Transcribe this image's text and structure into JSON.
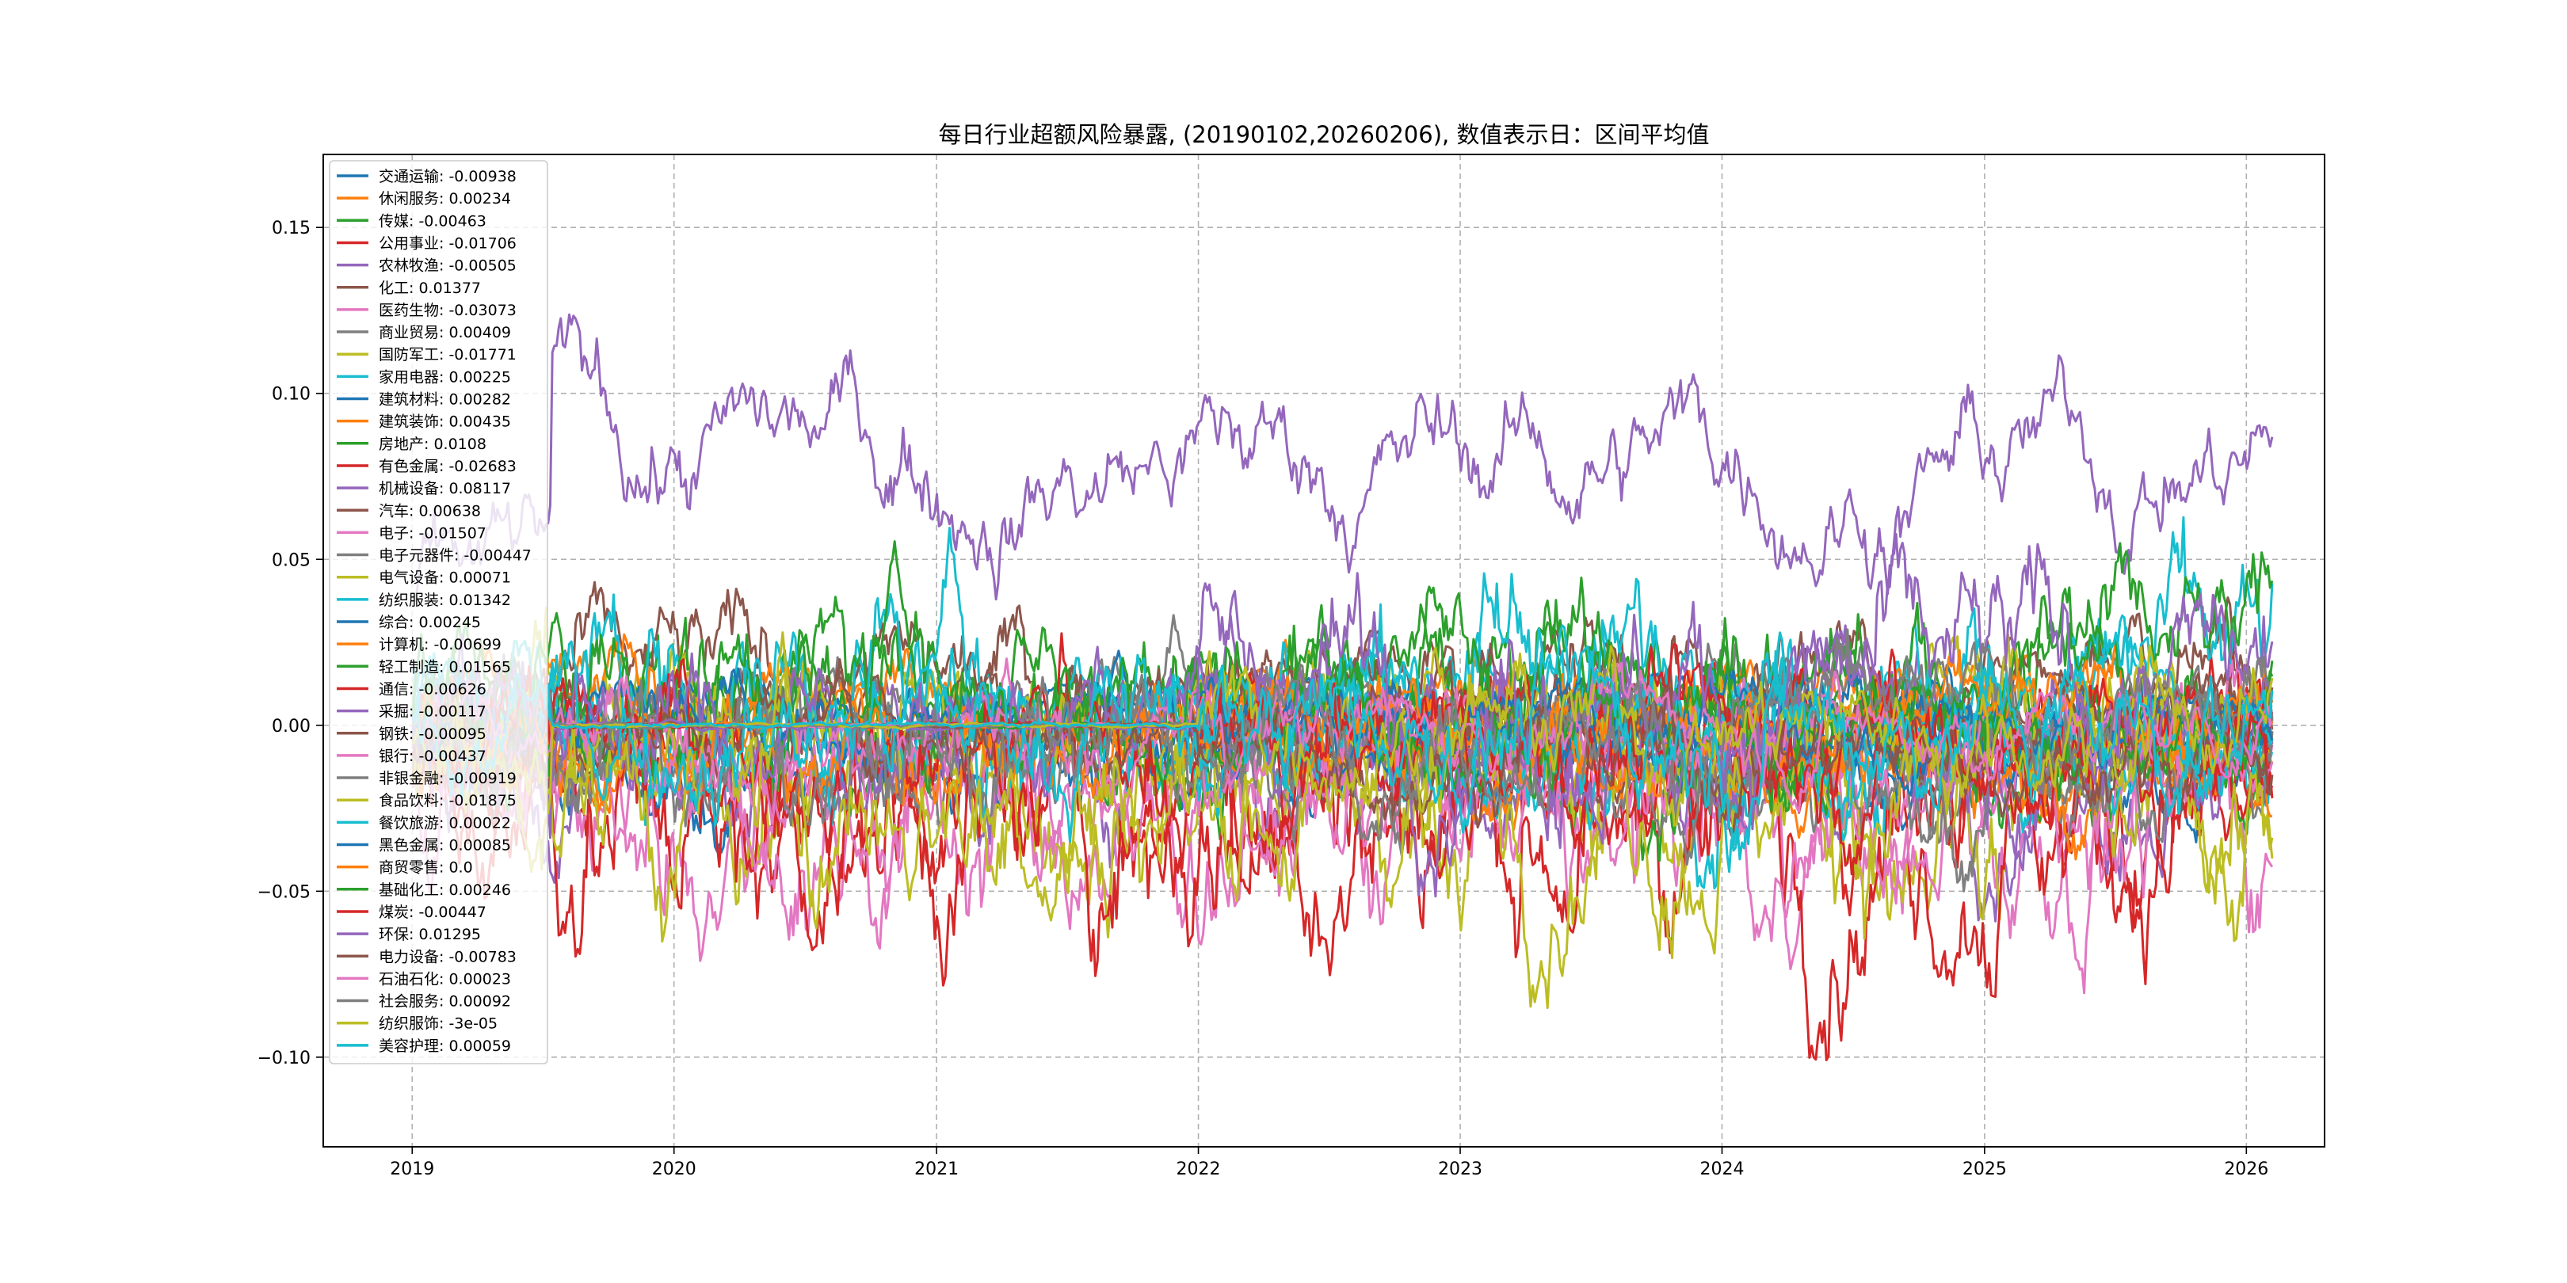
{
  "chart_data": {
    "type": "line",
    "title": "每日行业超额风险暴露, (20190102,20260206),  数值表示日：区间平均值",
    "xlabel": "",
    "ylabel": "",
    "xlim": [
      "2018-08-30",
      "2026-04-20"
    ],
    "ylim": [
      -0.127,
      0.172
    ],
    "x_ticks": [
      "2019",
      "2020",
      "2021",
      "2022",
      "2023",
      "2024",
      "2025",
      "2026"
    ],
    "y_ticks": [
      -0.1,
      -0.05,
      0.0,
      0.05,
      0.1,
      0.15
    ],
    "y_tick_labels": [
      "−0.10",
      "−0.05",
      "0.00",
      "0.05",
      "0.10",
      "0.15"
    ],
    "grid": true,
    "legend_placement": "upper-left",
    "date_range": [
      "2019-01-02",
      "2026-02-06"
    ],
    "series": [
      {
        "name": "交通运输",
        "label": "交通运输: -0.00938",
        "color": "#1f77b4",
        "mean": -0.00938
      },
      {
        "name": "休闲服务",
        "label": "休闲服务: 0.00234",
        "color": "#ff7f0e",
        "mean": 0.00234
      },
      {
        "name": "传媒",
        "label": "传媒: -0.00463",
        "color": "#2ca02c",
        "mean": -0.00463
      },
      {
        "name": "公用事业",
        "label": "公用事业: -0.01706",
        "color": "#d62728",
        "mean": -0.01706
      },
      {
        "name": "农林牧渔",
        "label": "农林牧渔: -0.00505",
        "color": "#9467bd",
        "mean": -0.00505
      },
      {
        "name": "化工",
        "label": "化工: 0.01377",
        "color": "#8c564b",
        "mean": 0.01377
      },
      {
        "name": "医药生物",
        "label": "医药生物: -0.03073",
        "color": "#e377c2",
        "mean": -0.03073
      },
      {
        "name": "商业贸易",
        "label": "商业贸易: 0.00409",
        "color": "#7f7f7f",
        "mean": 0.00409
      },
      {
        "name": "国防军工",
        "label": "国防军工: -0.01771",
        "color": "#bcbd22",
        "mean": -0.01771
      },
      {
        "name": "家用电器",
        "label": "家用电器: 0.00225",
        "color": "#17becf",
        "mean": 0.00225
      },
      {
        "name": "建筑材料",
        "label": "建筑材料: 0.00282",
        "color": "#1f77b4",
        "mean": 0.00282
      },
      {
        "name": "建筑装饰",
        "label": "建筑装饰: 0.00435",
        "color": "#ff7f0e",
        "mean": 0.00435
      },
      {
        "name": "房地产",
        "label": "房地产: 0.0108",
        "color": "#2ca02c",
        "mean": 0.0108
      },
      {
        "name": "有色金属",
        "label": "有色金属: -0.02683",
        "color": "#d62728",
        "mean": -0.02683
      },
      {
        "name": "机械设备",
        "label": "机械设备: 0.08117",
        "color": "#9467bd",
        "mean": 0.08117
      },
      {
        "name": "汽车",
        "label": "汽车: 0.00638",
        "color": "#8c564b",
        "mean": 0.00638
      },
      {
        "name": "电子",
        "label": "电子: -0.01507",
        "color": "#e377c2",
        "mean": -0.01507
      },
      {
        "name": "电子元器件",
        "label": "电子元器件: -0.00447",
        "color": "#7f7f7f",
        "mean": -0.00447
      },
      {
        "name": "电气设备",
        "label": "电气设备: 0.00071",
        "color": "#bcbd22",
        "mean": 0.00071
      },
      {
        "name": "纺织服装",
        "label": "纺织服装: 0.01342",
        "color": "#17becf",
        "mean": 0.01342
      },
      {
        "name": "综合",
        "label": "综合: 0.00245",
        "color": "#1f77b4",
        "mean": 0.00245
      },
      {
        "name": "计算机",
        "label": "计算机: -0.00699",
        "color": "#ff7f0e",
        "mean": -0.00699
      },
      {
        "name": "轻工制造",
        "label": "轻工制造: 0.01565",
        "color": "#2ca02c",
        "mean": 0.01565
      },
      {
        "name": "通信",
        "label": "通信: -0.00626",
        "color": "#d62728",
        "mean": -0.00626
      },
      {
        "name": "采掘",
        "label": "采掘: -0.00117",
        "color": "#9467bd",
        "mean": -0.00117
      },
      {
        "name": "钢铁",
        "label": "钢铁: -0.00095",
        "color": "#8c564b",
        "mean": -0.00095
      },
      {
        "name": "银行",
        "label": "银行: -0.00437",
        "color": "#e377c2",
        "mean": -0.00437
      },
      {
        "name": "非银金融",
        "label": "非银金融: -0.00919",
        "color": "#7f7f7f",
        "mean": -0.00919
      },
      {
        "name": "食品饮料",
        "label": "食品饮料: -0.01875",
        "color": "#bcbd22",
        "mean": -0.01875
      },
      {
        "name": "餐饮旅游",
        "label": "餐饮旅游: 0.00022",
        "color": "#17becf",
        "mean": 0.00022
      },
      {
        "name": "黑色金属",
        "label": "黑色金属: 0.00085",
        "color": "#1f77b4",
        "mean": 0.00085
      },
      {
        "name": "商贸零售",
        "label": "商贸零售: 0.0",
        "color": "#ff7f0e",
        "mean": 0.0
      },
      {
        "name": "基础化工",
        "label": "基础化工: 0.00246",
        "color": "#2ca02c",
        "mean": 0.00246
      },
      {
        "name": "煤炭",
        "label": "煤炭: -0.00447",
        "color": "#d62728",
        "mean": -0.00447
      },
      {
        "name": "环保",
        "label": "环保: 0.01295",
        "color": "#9467bd",
        "mean": 0.01295
      },
      {
        "name": "电力设备",
        "label": "电力设备: -0.00783",
        "color": "#8c564b",
        "mean": -0.00783
      },
      {
        "name": "石油石化",
        "label": "石油石化: 0.00023",
        "color": "#e377c2",
        "mean": 0.00023
      },
      {
        "name": "社会服务",
        "label": "社会服务: 0.00092",
        "color": "#7f7f7f",
        "mean": 0.00092
      },
      {
        "name": "纺织服饰",
        "label": "纺织服饰: -3e-05",
        "color": "#bcbd22",
        "mean": -3e-05
      },
      {
        "name": "美容护理",
        "label": "美容护理: 0.00059",
        "color": "#17becf",
        "mean": 0.00059
      }
    ]
  }
}
